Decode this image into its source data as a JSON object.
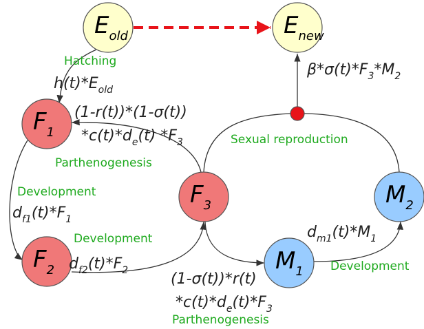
{
  "nodes": [
    [
      {
        "text": "E"
      },
      {
        "sub": "old"
      }
    ],
    [
      {
        "text": "E"
      },
      {
        "sub": "new"
      }
    ],
    [
      {
        "text": "F"
      },
      {
        "sub": "1"
      }
    ],
    [
      {
        "text": "F"
      },
      {
        "sub": "2"
      }
    ],
    [
      {
        "text": "F"
      },
      {
        "sub": "3"
      }
    ],
    [
      {
        "text": "M"
      },
      {
        "sub": "1"
      }
    ],
    [
      {
        "text": "M"
      },
      {
        "sub": "2"
      }
    ]
  ],
  "processes": [
    "Hatching",
    "Sexual reproduction",
    "Parthenogenesis",
    "Development",
    "Development",
    "Development",
    "Parthenogenesis"
  ],
  "rates": [
    [
      {
        "text": "h(t)*E"
      },
      {
        "sub": "old"
      }
    ],
    [
      {
        "text": "β*σ(t)*F"
      },
      {
        "sub": "3"
      },
      {
        "text": "*M"
      },
      {
        "sub": "2"
      }
    ],
    [
      {
        "text": "(1-r(t))*(1-σ(t))"
      }
    ],
    [
      {
        "text": "*c(t)*d"
      },
      {
        "sub": "e"
      },
      {
        "text": "(t) *F"
      },
      {
        "sub": "3"
      }
    ],
    [
      {
        "text": "d"
      },
      {
        "sub": "f1"
      },
      {
        "text": "(t)*F"
      },
      {
        "sub": "1"
      }
    ],
    [
      {
        "text": "d"
      },
      {
        "sub": "f2"
      },
      {
        "text": "(t)*F"
      },
      {
        "sub": "2"
      }
    ],
    [
      {
        "text": "d"
      },
      {
        "sub": "m1"
      },
      {
        "text": "(t)*M"
      },
      {
        "sub": "1"
      }
    ],
    [
      {
        "text": "(1-σ(t))*r(t)"
      }
    ],
    [
      {
        "text": "*c(t)*d"
      },
      {
        "sub": "e"
      },
      {
        "text": "(t)*F"
      },
      {
        "sub": "3"
      }
    ]
  ]
}
